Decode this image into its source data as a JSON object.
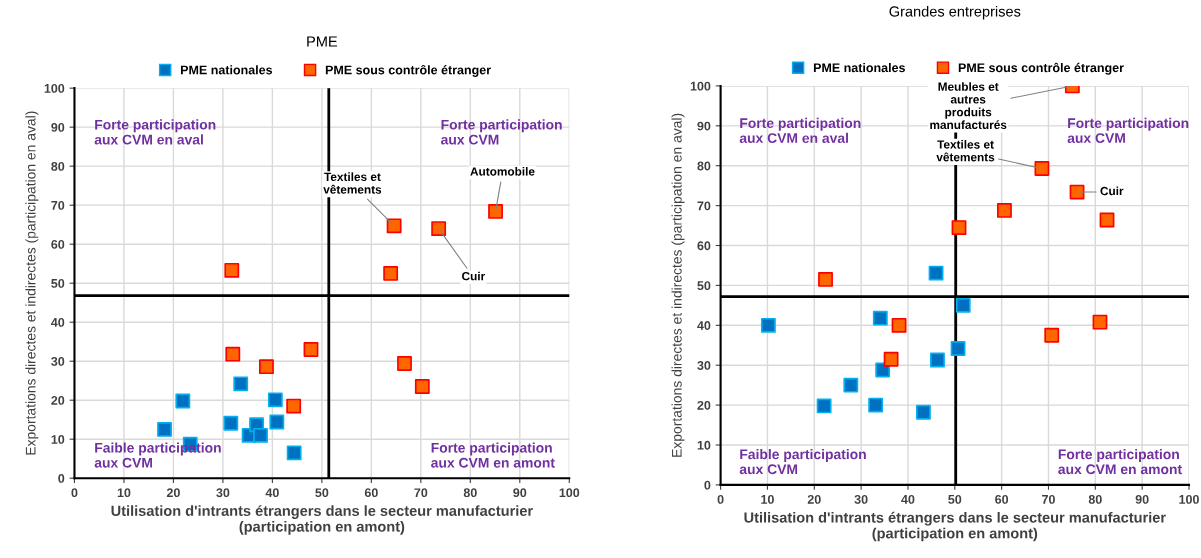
{
  "chart_data": [
    {
      "type": "scatter",
      "title": "PME",
      "xlabel": "Utilisation d'intrants étrangers dans le secteur manufacturier\n(participation en amont)",
      "ylabel": "Exportations directes et indirectes (participation en aval)",
      "xlim": [
        0,
        100
      ],
      "ylim": [
        0,
        100
      ],
      "xticks": [
        0,
        10,
        20,
        30,
        40,
        50,
        60,
        70,
        80,
        90,
        100
      ],
      "yticks": [
        0,
        10,
        20,
        30,
        40,
        50,
        60,
        70,
        80,
        90,
        100
      ],
      "grid": true,
      "legend": "top",
      "marker": "square",
      "series": [
        {
          "name": "PME nationales",
          "color": "#0070c0",
          "x": [
            18.2,
            21.9,
            23.4,
            31.6,
            33.6,
            35.3,
            36.8,
            37.6,
            40.6,
            40.9,
            44.4
          ],
          "values": [
            12.5,
            19.8,
            8.7,
            14.1,
            24.2,
            11,
            13.7,
            11,
            20.1,
            14.4,
            6.5
          ]
        },
        {
          "name": "PME sous contrôle étranger",
          "color": "#ff6600",
          "x": [
            31.8,
            32,
            38.8,
            44.3,
            47.8,
            63.9,
            64.6,
            66.7,
            70.3,
            73.6,
            85.1
          ],
          "values": [
            53.3,
            31.8,
            28.6,
            18.5,
            33,
            52.5,
            64.7,
            29.4,
            23.5,
            64,
            68.4
          ]
        }
      ],
      "ref_lines": [
        {
          "axis": "x",
          "value": 51.4,
          "color": "#000000"
        },
        {
          "axis": "y",
          "value": 46.8,
          "color": "#000000"
        }
      ],
      "annotations": [
        "Forte participation\naux CVM en aval",
        "Forte participation\naux CVM",
        "Faible participation\naux CVM",
        "Forte participation\naux CVM en amont",
        {
          "text": "Textiles et\nvêtements",
          "x": 64.6,
          "y": 64.7
        },
        {
          "text": "Cuir",
          "x": 73.6,
          "y": 64
        },
        {
          "text": "Automobile",
          "x": 85.1,
          "y": 68.4
        }
      ]
    },
    {
      "type": "scatter",
      "title": "Grandes entreprises",
      "xlabel": "Utilisation d'intrants étrangers dans le secteur manufacturier\n(participation en amont)",
      "ylabel": "Exportations directes et indirectes (participation en aval)",
      "xlim": [
        0,
        100
      ],
      "ylim": [
        0,
        100
      ],
      "xticks": [
        0,
        10,
        20,
        30,
        40,
        50,
        60,
        70,
        80,
        90,
        100
      ],
      "yticks": [
        0,
        10,
        20,
        30,
        40,
        50,
        60,
        70,
        80,
        90,
        100
      ],
      "grid": true,
      "legend": "top",
      "marker": "square",
      "series": [
        {
          "name": "PME nationales",
          "color": "#0070c0",
          "x": [
            10.2,
            22.1,
            27.8,
            33.1,
            34.1,
            34.6,
            43.3,
            46,
            46.3,
            50.7,
            51.8
          ],
          "values": [
            40,
            19.8,
            25,
            20,
            41.8,
            28.8,
            18.2,
            53.1,
            31.3,
            34.2,
            45
          ]
        },
        {
          "name": "PME sous contrôle étranger",
          "color": "#ff6600",
          "x": [
            22.4,
            36.4,
            38.1,
            50.9,
            60.6,
            68.6,
            70.7,
            75.1,
            76.1,
            81,
            82.5
          ],
          "values": [
            51.5,
            31.5,
            40,
            64.5,
            68.8,
            79.3,
            37.5,
            100,
            73.4,
            40.8,
            66.4
          ]
        }
      ],
      "ref_lines": [
        {
          "axis": "x",
          "value": 50.2,
          "color": "#000000"
        },
        {
          "axis": "y",
          "value": 47.2,
          "color": "#000000"
        }
      ],
      "annotations": [
        "Forte participation\naux CVM en aval",
        "Forte participation\naux CVM",
        "Faible participation\naux CVM",
        "Forte participation\naux CVM en amont",
        {
          "text": "Meubles et\nautres\nproduits\nmanufacturés",
          "x": 75.1,
          "y": 100
        },
        {
          "text": "Textiles et\nvêtements",
          "x": 68.6,
          "y": 79.3
        },
        {
          "text": "Cuir",
          "x": 76.1,
          "y": 73.4
        }
      ]
    }
  ]
}
